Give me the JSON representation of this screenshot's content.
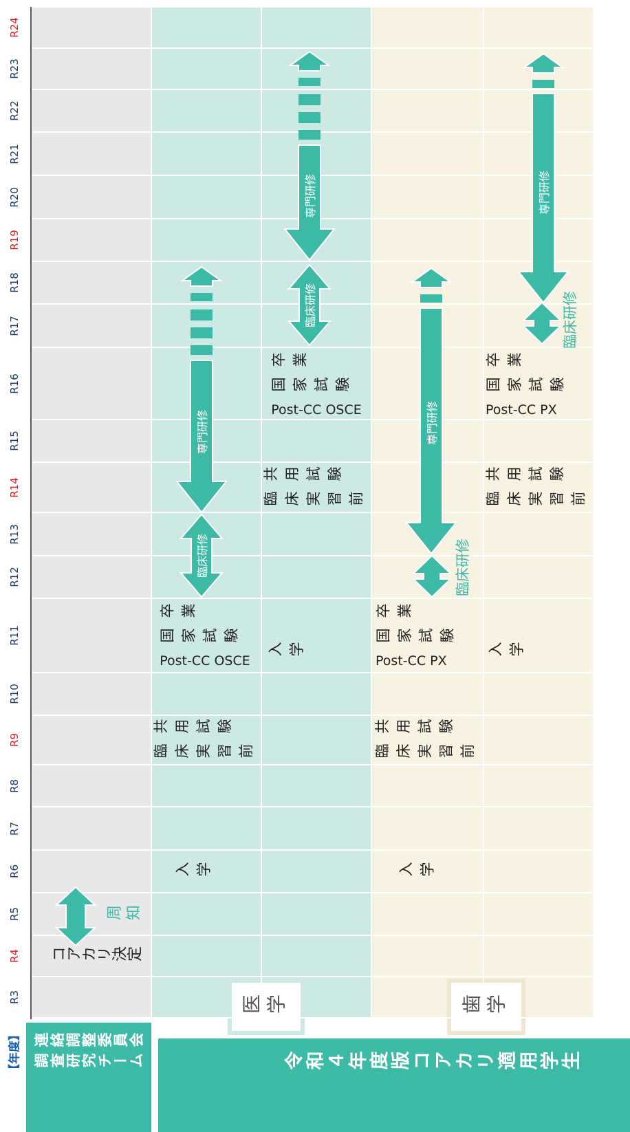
{
  "header": {
    "year": "【年度】",
    "committee": [
      "連絡調整委員会",
      "調査研究チーム"
    ],
    "students": "令和４年度版コアカリ適用学生"
  },
  "years": [
    {
      "label": "R3",
      "color": "#1a3a6a"
    },
    {
      "label": "R4",
      "color": "#e02020"
    },
    {
      "label": "R5",
      "color": "#1a3a6a"
    },
    {
      "label": "R6",
      "color": "#1a3a6a"
    },
    {
      "label": "R7",
      "color": "#1a3a6a"
    },
    {
      "label": "R8",
      "color": "#1a3a6a"
    },
    {
      "label": "R9",
      "color": "#e02020"
    },
    {
      "label": "R10",
      "color": "#1a3a6a"
    },
    {
      "label": "R11",
      "color": "#1a3a6a"
    },
    {
      "label": "R12",
      "color": "#1a3a6a"
    },
    {
      "label": "R13",
      "color": "#1a3a6a"
    },
    {
      "label": "R14",
      "color": "#e02020"
    },
    {
      "label": "R15",
      "color": "#1a3a6a"
    },
    {
      "label": "R16",
      "color": "#1a3a6a"
    },
    {
      "label": "R17",
      "color": "#1a3a6a"
    },
    {
      "label": "R18",
      "color": "#1a3a6a"
    },
    {
      "label": "R19",
      "color": "#e02020"
    },
    {
      "label": "R20",
      "color": "#1a3a6a"
    },
    {
      "label": "R21",
      "color": "#1a3a6a"
    },
    {
      "label": "R22",
      "color": "#1a3a6a"
    },
    {
      "label": "R23",
      "color": "#1a3a6a"
    },
    {
      "label": "R24",
      "color": "#e02020"
    }
  ],
  "columns": {
    "medicine": "医学",
    "dentistry": "歯学"
  },
  "committee_events": {
    "decision": "コアカリ決定",
    "notice": "周知"
  },
  "cohorts": [
    {
      "enrollment": "入学",
      "exam": [
        "共用試験",
        "臨床実習前"
      ],
      "graduation": [
        "卒業",
        "国家試験",
        "Post-CC OSCE"
      ],
      "clinical": "臨床研修",
      "specialty": "専門研修"
    },
    {
      "enrollment": "入学",
      "exam": [
        "共用試験",
        "臨床実習前"
      ],
      "graduation": [
        "卒業",
        "国家試験",
        "Post-CC OSCE"
      ],
      "clinical": "臨床研修",
      "specialty": "専門研修"
    },
    {
      "enrollment": "入学",
      "exam": [
        "共用試験",
        "臨床実習前"
      ],
      "graduation": [
        "卒業",
        "国家試験",
        "Post-CC PX"
      ],
      "clinical": "臨床研修",
      "specialty": "専門研修"
    },
    {
      "enrollment": "入学",
      "exam": [
        "共用試験",
        "臨床実習前"
      ],
      "graduation": [
        "卒業",
        "国家試験",
        "Post-CC PX"
      ],
      "clinical": "臨床研修",
      "specialty": "専門研修"
    }
  ]
}
